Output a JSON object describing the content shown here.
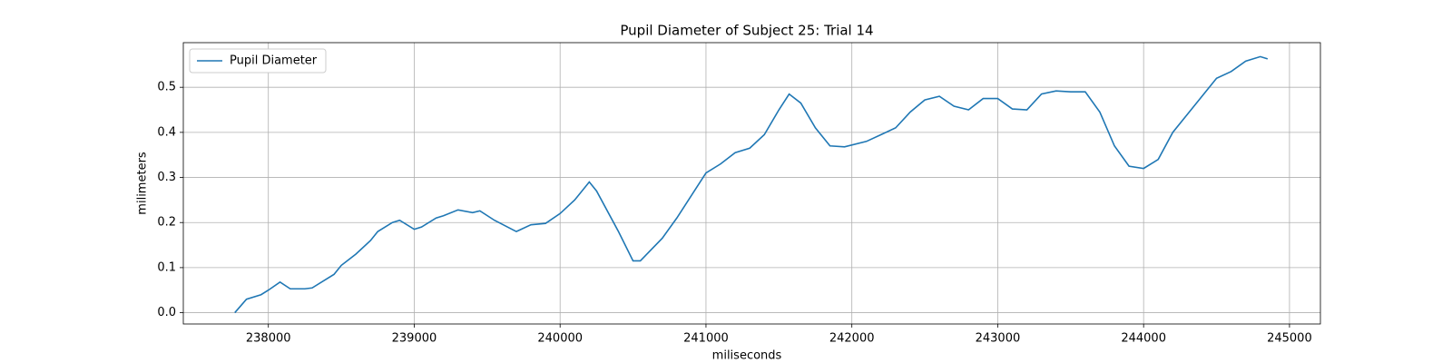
{
  "chart_data": {
    "type": "line",
    "title": "Pupil Diameter of Subject 25: Trial 14",
    "xlabel": "miliseconds",
    "ylabel": "milimeters",
    "x": [
      237770,
      237850,
      237950,
      238000,
      238080,
      238150,
      238250,
      238300,
      238400,
      238450,
      238500,
      238600,
      238700,
      238750,
      238850,
      238900,
      239000,
      239050,
      239150,
      239200,
      239300,
      239400,
      239450,
      239550,
      239700,
      239800,
      239900,
      240000,
      240100,
      240200,
      240250,
      240400,
      240500,
      240550,
      240700,
      240800,
      240900,
      241000,
      241100,
      241200,
      241300,
      241400,
      241500,
      241570,
      241650,
      241750,
      241850,
      241950,
      242100,
      242200,
      242300,
      242400,
      242500,
      242600,
      242700,
      242800,
      242900,
      243000,
      243100,
      243200,
      243300,
      243400,
      243500,
      243600,
      243700,
      243800,
      243900,
      244000,
      244100,
      244200,
      244300,
      244400,
      244500,
      244600,
      244700,
      244800,
      244850
    ],
    "series": [
      {
        "name": "Pupil Diameter",
        "color": "#1f77b4",
        "values": [
          0,
          0.03,
          0.04,
          0.05,
          0.068,
          0.053,
          0.053,
          0.055,
          0.075,
          0.085,
          0.105,
          0.13,
          0.16,
          0.18,
          0.2,
          0.205,
          0.185,
          0.19,
          0.21,
          0.215,
          0.228,
          0.222,
          0.226,
          0.205,
          0.18,
          0.195,
          0.198,
          0.22,
          0.25,
          0.29,
          0.27,
          0.18,
          0.115,
          0.115,
          0.165,
          0.21,
          0.26,
          0.31,
          0.33,
          0.355,
          0.365,
          0.395,
          0.45,
          0.485,
          0.465,
          0.41,
          0.37,
          0.368,
          0.38,
          0.395,
          0.41,
          0.445,
          0.472,
          0.48,
          0.458,
          0.45,
          0.475,
          0.475,
          0.452,
          0.45,
          0.485,
          0.492,
          0.49,
          0.49,
          0.445,
          0.37,
          0.325,
          0.32,
          0.34,
          0.4,
          0.44,
          0.48,
          0.52,
          0.535,
          0.558,
          0.568,
          0.563
        ]
      }
    ],
    "xlim": [
      237417,
      245212
    ],
    "ylim": [
      -0.025,
      0.599
    ],
    "xticks": [
      238000,
      239000,
      240000,
      241000,
      242000,
      243000,
      244000,
      245000
    ],
    "yticks": [
      {
        "value": 0,
        "label": "0.0"
      },
      0.1,
      0.2,
      0.3,
      0.4,
      0.5
    ],
    "grid": true,
    "legend": "upper left"
  }
}
